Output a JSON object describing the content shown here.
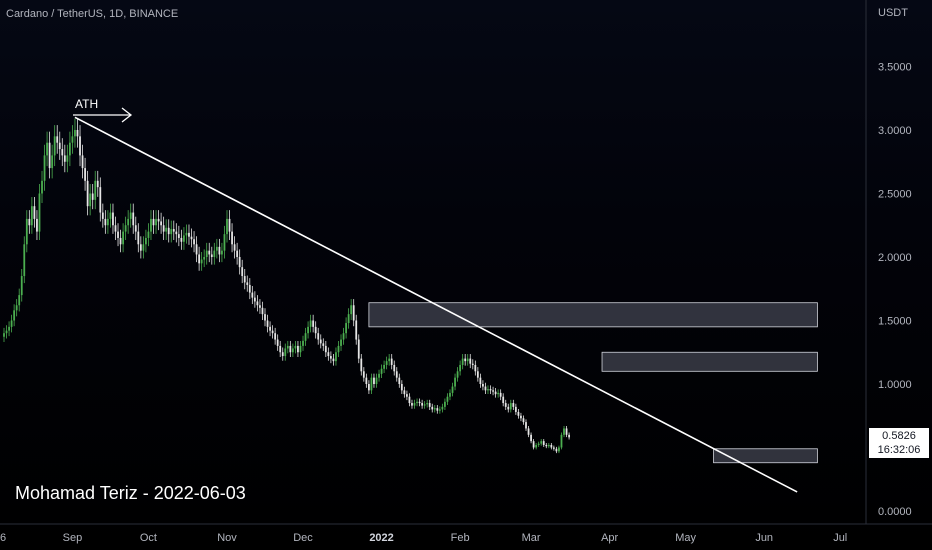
{
  "header": {
    "title": "Cardano / TetherUS, 1D, BINANCE"
  },
  "price_axis": {
    "currency": "USDT",
    "ticks": [
      "3.5000",
      "3.0000",
      "2.5000",
      "2.0000",
      "1.5000",
      "1.0000",
      "0.0000"
    ]
  },
  "time_axis": {
    "ticks": [
      "6",
      "Sep",
      "Oct",
      "Nov",
      "Dec",
      "2022",
      "Feb",
      "Mar",
      "Apr",
      "May",
      "Jun",
      "Jul"
    ]
  },
  "current_price": {
    "value": "0.5826",
    "countdown": "16:32:06"
  },
  "annotation": {
    "ath": "ATH"
  },
  "watermark": "Mohamad Teriz - 2022-06-03",
  "colors": {
    "up": "#4caf50",
    "down": "#e6e6e6",
    "trendline": "#ffffff",
    "zone_fill": "#3a3c48",
    "zone_border": "#d1d4dc"
  },
  "chart_data": {
    "type": "candlestick",
    "title": "Cardano / TetherUS, 1D, BINANCE",
    "ylabel": "USDT",
    "ylim": [
      0,
      3.8
    ],
    "x_ticks": [
      "6",
      "Sep",
      "Oct",
      "Nov",
      "Dec",
      "2022",
      "Feb",
      "Mar",
      "Apr",
      "May",
      "Jun",
      "Jul"
    ],
    "y_ticks": [
      0,
      1.0,
      1.5,
      2.0,
      2.5,
      3.0,
      3.5
    ],
    "current_price": 0.5826,
    "ath_annotation": {
      "label": "ATH",
      "date": "2021-09-02",
      "price": 3.1
    },
    "trendline": [
      {
        "date": "2021-09-02",
        "price": 3.1
      },
      {
        "date": "2022-06-14",
        "price": 0.15
      }
    ],
    "zones": [
      {
        "price_low": 1.45,
        "price_high": 1.64,
        "from": "2021-12-27",
        "to": "2022-06-22"
      },
      {
        "price_low": 1.1,
        "price_high": 1.25,
        "from": "2022-03-29",
        "to": "2022-06-22"
      },
      {
        "price_low": 0.38,
        "price_high": 0.49,
        "from": "2022-05-12",
        "to": "2022-06-22"
      }
    ],
    "close_series": {
      "start": "2021-08-05",
      "values": [
        1.4,
        1.42,
        1.45,
        1.5,
        1.58,
        1.62,
        1.7,
        1.85,
        2.1,
        2.3,
        2.25,
        2.4,
        2.3,
        2.2,
        2.5,
        2.6,
        2.8,
        2.9,
        2.7,
        2.8,
        2.95,
        2.9,
        2.85,
        2.8,
        2.75,
        2.8,
        2.9,
        2.95,
        3.0,
        2.95,
        2.8,
        2.7,
        2.6,
        2.4,
        2.5,
        2.45,
        2.6,
        2.55,
        2.35,
        2.3,
        2.25,
        2.3,
        2.35,
        2.25,
        2.2,
        2.15,
        2.1,
        2.2,
        2.25,
        2.3,
        2.35,
        2.25,
        2.2,
        2.1,
        2.05,
        2.1,
        2.15,
        2.2,
        2.3,
        2.25,
        2.3,
        2.28,
        2.25,
        2.2,
        2.23,
        2.18,
        2.22,
        2.2,
        2.18,
        2.15,
        2.12,
        2.17,
        2.19,
        2.16,
        2.14,
        2.1,
        2.02,
        1.95,
        1.98,
        2.0,
        2.05,
        2.02,
        2.0,
        2.05,
        2.08,
        2.02,
        2.05,
        2.18,
        2.3,
        2.2,
        2.1,
        2.05,
        2.0,
        1.92,
        1.85,
        1.8,
        1.78,
        1.72,
        1.68,
        1.65,
        1.62,
        1.6,
        1.55,
        1.5,
        1.45,
        1.42,
        1.4,
        1.35,
        1.3,
        1.25,
        1.22,
        1.28,
        1.3,
        1.25,
        1.28,
        1.3,
        1.25,
        1.3,
        1.34,
        1.4,
        1.45,
        1.5,
        1.45,
        1.4,
        1.35,
        1.32,
        1.3,
        1.25,
        1.22,
        1.2,
        1.18,
        1.25,
        1.3,
        1.35,
        1.4,
        1.48,
        1.55,
        1.62,
        1.5,
        1.35,
        1.2,
        1.1,
        1.05,
        1.0,
        0.95,
        1.05,
        1.0,
        1.05,
        1.08,
        1.12,
        1.15,
        1.18,
        1.2,
        1.15,
        1.1,
        1.05,
        1.0,
        0.95,
        0.92,
        0.9,
        0.85,
        0.83,
        0.85,
        0.86,
        0.85,
        0.83,
        0.84,
        0.85,
        0.82,
        0.8,
        0.81,
        0.79,
        0.8,
        0.82,
        0.86,
        0.9,
        0.93,
        0.98,
        1.05,
        1.1,
        1.15,
        1.2,
        1.18,
        1.2,
        1.16,
        1.15,
        1.1,
        1.05,
        1.0,
        0.98,
        0.95,
        0.96,
        0.95,
        0.94,
        0.92,
        0.93,
        0.9,
        0.85,
        0.82,
        0.8,
        0.85,
        0.82,
        0.78,
        0.75,
        0.73,
        0.7,
        0.65,
        0.6,
        0.55,
        0.5,
        0.52,
        0.53,
        0.55,
        0.52,
        0.51,
        0.52,
        0.5,
        0.49,
        0.47,
        0.5,
        0.6,
        0.65,
        0.6,
        0.58
      ]
    }
  }
}
